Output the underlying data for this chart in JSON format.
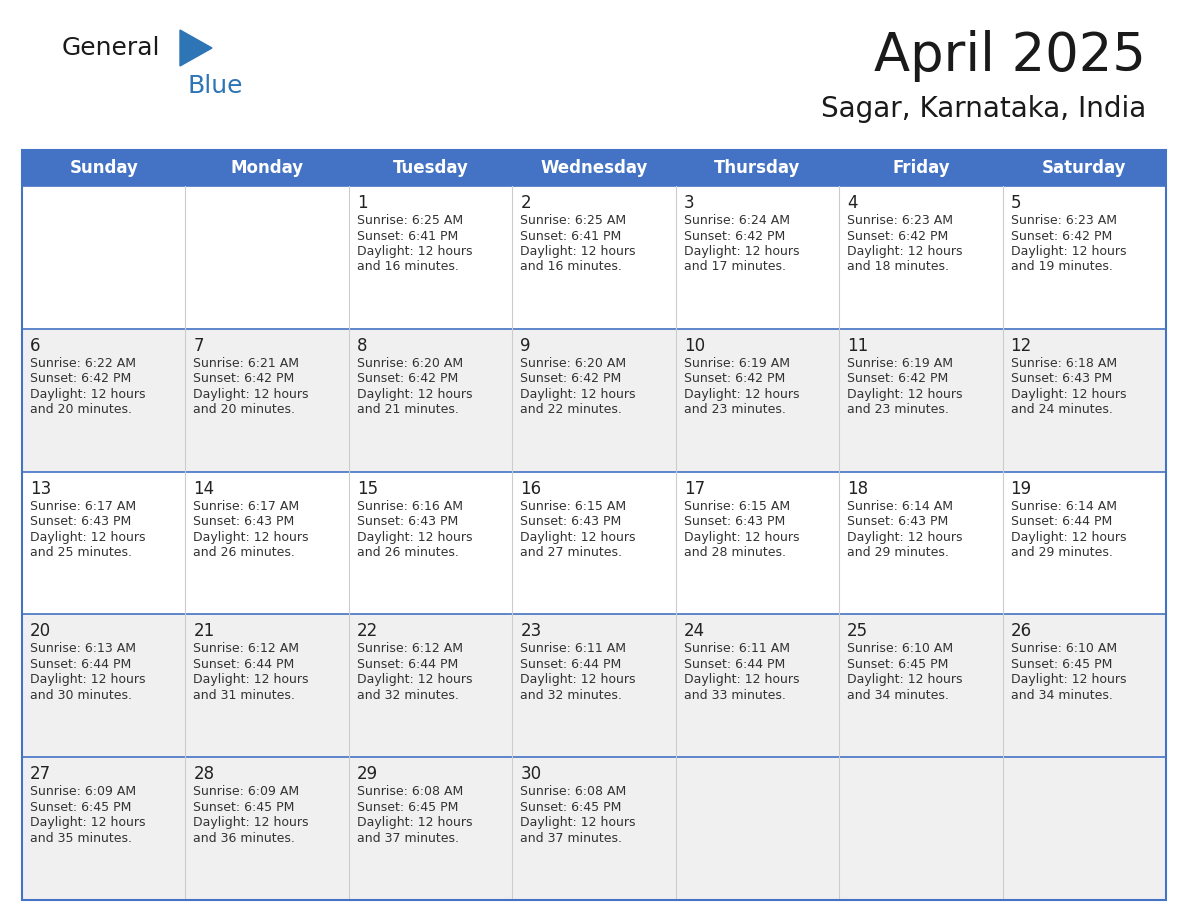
{
  "title": "April 2025",
  "subtitle": "Sagar, Karnataka, India",
  "header_bg": "#4472c4",
  "header_text_color": "#ffffff",
  "cell_bg_white": "#ffffff",
  "cell_bg_gray": "#f0f0f0",
  "border_color": "#4472c4",
  "divider_color": "#4472c4",
  "vert_divider_color": "#cccccc",
  "text_color": "#333333",
  "day_num_color": "#222222",
  "day_headers": [
    "Sunday",
    "Monday",
    "Tuesday",
    "Wednesday",
    "Thursday",
    "Friday",
    "Saturday"
  ],
  "weeks": [
    [
      {
        "day": "",
        "sunrise": "",
        "sunset": "",
        "daylight_min": ""
      },
      {
        "day": "",
        "sunrise": "",
        "sunset": "",
        "daylight_min": ""
      },
      {
        "day": "1",
        "sunrise": "6:25 AM",
        "sunset": "6:41 PM",
        "daylight_min": "16 minutes."
      },
      {
        "day": "2",
        "sunrise": "6:25 AM",
        "sunset": "6:41 PM",
        "daylight_min": "16 minutes."
      },
      {
        "day": "3",
        "sunrise": "6:24 AM",
        "sunset": "6:42 PM",
        "daylight_min": "17 minutes."
      },
      {
        "day": "4",
        "sunrise": "6:23 AM",
        "sunset": "6:42 PM",
        "daylight_min": "18 minutes."
      },
      {
        "day": "5",
        "sunrise": "6:23 AM",
        "sunset": "6:42 PM",
        "daylight_min": "19 minutes."
      }
    ],
    [
      {
        "day": "6",
        "sunrise": "6:22 AM",
        "sunset": "6:42 PM",
        "daylight_min": "20 minutes."
      },
      {
        "day": "7",
        "sunrise": "6:21 AM",
        "sunset": "6:42 PM",
        "daylight_min": "20 minutes."
      },
      {
        "day": "8",
        "sunrise": "6:20 AM",
        "sunset": "6:42 PM",
        "daylight_min": "21 minutes."
      },
      {
        "day": "9",
        "sunrise": "6:20 AM",
        "sunset": "6:42 PM",
        "daylight_min": "22 minutes."
      },
      {
        "day": "10",
        "sunrise": "6:19 AM",
        "sunset": "6:42 PM",
        "daylight_min": "23 minutes."
      },
      {
        "day": "11",
        "sunrise": "6:19 AM",
        "sunset": "6:42 PM",
        "daylight_min": "23 minutes."
      },
      {
        "day": "12",
        "sunrise": "6:18 AM",
        "sunset": "6:43 PM",
        "daylight_min": "24 minutes."
      }
    ],
    [
      {
        "day": "13",
        "sunrise": "6:17 AM",
        "sunset": "6:43 PM",
        "daylight_min": "25 minutes."
      },
      {
        "day": "14",
        "sunrise": "6:17 AM",
        "sunset": "6:43 PM",
        "daylight_min": "26 minutes."
      },
      {
        "day": "15",
        "sunrise": "6:16 AM",
        "sunset": "6:43 PM",
        "daylight_min": "26 minutes."
      },
      {
        "day": "16",
        "sunrise": "6:15 AM",
        "sunset": "6:43 PM",
        "daylight_min": "27 minutes."
      },
      {
        "day": "17",
        "sunrise": "6:15 AM",
        "sunset": "6:43 PM",
        "daylight_min": "28 minutes."
      },
      {
        "day": "18",
        "sunrise": "6:14 AM",
        "sunset": "6:43 PM",
        "daylight_min": "29 minutes."
      },
      {
        "day": "19",
        "sunrise": "6:14 AM",
        "sunset": "6:44 PM",
        "daylight_min": "29 minutes."
      }
    ],
    [
      {
        "day": "20",
        "sunrise": "6:13 AM",
        "sunset": "6:44 PM",
        "daylight_min": "30 minutes."
      },
      {
        "day": "21",
        "sunrise": "6:12 AM",
        "sunset": "6:44 PM",
        "daylight_min": "31 minutes."
      },
      {
        "day": "22",
        "sunrise": "6:12 AM",
        "sunset": "6:44 PM",
        "daylight_min": "32 minutes."
      },
      {
        "day": "23",
        "sunrise": "6:11 AM",
        "sunset": "6:44 PM",
        "daylight_min": "32 minutes."
      },
      {
        "day": "24",
        "sunrise": "6:11 AM",
        "sunset": "6:44 PM",
        "daylight_min": "33 minutes."
      },
      {
        "day": "25",
        "sunrise": "6:10 AM",
        "sunset": "6:45 PM",
        "daylight_min": "34 minutes."
      },
      {
        "day": "26",
        "sunrise": "6:10 AM",
        "sunset": "6:45 PM",
        "daylight_min": "34 minutes."
      }
    ],
    [
      {
        "day": "27",
        "sunrise": "6:09 AM",
        "sunset": "6:45 PM",
        "daylight_min": "35 minutes."
      },
      {
        "day": "28",
        "sunrise": "6:09 AM",
        "sunset": "6:45 PM",
        "daylight_min": "36 minutes."
      },
      {
        "day": "29",
        "sunrise": "6:08 AM",
        "sunset": "6:45 PM",
        "daylight_min": "37 minutes."
      },
      {
        "day": "30",
        "sunrise": "6:08 AM",
        "sunset": "6:45 PM",
        "daylight_min": "37 minutes."
      },
      {
        "day": "",
        "sunrise": "",
        "sunset": "",
        "daylight_min": ""
      },
      {
        "day": "",
        "sunrise": "",
        "sunset": "",
        "daylight_min": ""
      },
      {
        "day": "",
        "sunrise": "",
        "sunset": "",
        "daylight_min": ""
      }
    ]
  ],
  "logo_text1": "General",
  "logo_text2": "Blue",
  "logo_color1": "#1a1a1a",
  "logo_color2": "#2e75b6",
  "logo_triangle_color": "#2e75b6",
  "row_bg_colors": [
    "#ffffff",
    "#f0f0f0",
    "#ffffff",
    "#f0f0f0",
    "#f0f0f0"
  ]
}
